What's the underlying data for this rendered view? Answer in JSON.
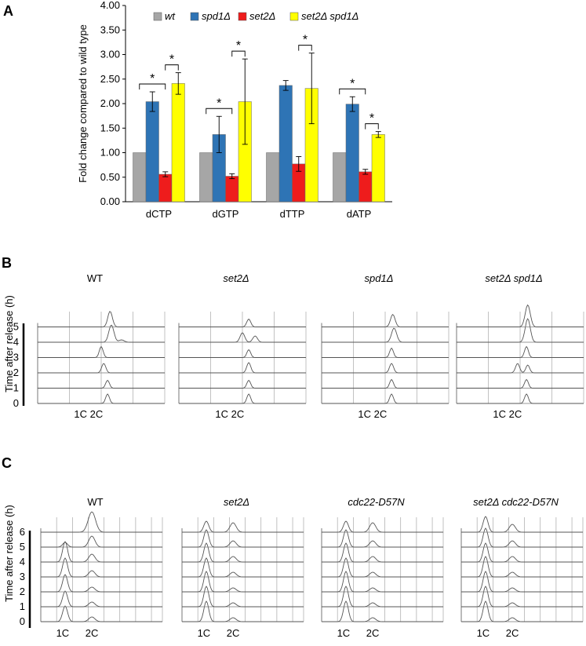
{
  "panelA": {
    "label": "A",
    "chart_data": {
      "type": "bar",
      "title": "",
      "xlabel": "",
      "ylabel": "Fold change compared to wild type",
      "ylim": [
        0,
        4
      ],
      "yticks": [
        "0.00",
        "0.50",
        "1.00",
        "1.50",
        "2.00",
        "2.50",
        "3.00",
        "3.50",
        "4.00"
      ],
      "categories": [
        "dCTP",
        "dGTP",
        "dTTP",
        "dATP"
      ],
      "series": [
        {
          "name": "wt",
          "label": "wt",
          "color": "#a6a6a6",
          "values": [
            1.0,
            1.0,
            1.0,
            1.0
          ],
          "errors": [
            0,
            0,
            0,
            0
          ]
        },
        {
          "name": "spd1Δ",
          "label": "spd1Δ",
          "color": "#2e74b5",
          "values": [
            2.04,
            1.37,
            2.37,
            1.99
          ],
          "errors": [
            0.2,
            0.37,
            0.1,
            0.15
          ]
        },
        {
          "name": "set2Δ",
          "label": "set2Δ",
          "color": "#ee1c1c",
          "values": [
            0.56,
            0.52,
            0.77,
            0.61
          ],
          "errors": [
            0.05,
            0.05,
            0.15,
            0.05
          ]
        },
        {
          "name": "set2Δ spd1Δ",
          "label": "set2Δ spd1Δ",
          "color": "#ffff00",
          "values": [
            2.41,
            2.04,
            2.31,
            1.37
          ],
          "errors": [
            0.22,
            0.87,
            0.72,
            0.06
          ]
        }
      ],
      "significance": [
        {
          "category": 0,
          "from": 0,
          "to": 2,
          "label": "*"
        },
        {
          "category": 0,
          "from": 2,
          "to": 3,
          "label": "*"
        },
        {
          "category": 1,
          "from": 0,
          "to": 2,
          "label": "*"
        },
        {
          "category": 1,
          "from": 2,
          "to": 3,
          "label": "*"
        },
        {
          "category": 2,
          "from": 2,
          "to": 3,
          "label": "*"
        },
        {
          "category": 3,
          "from": 0,
          "to": 2,
          "label": "*"
        },
        {
          "category": 3,
          "from": 2,
          "to": 3,
          "label": "*"
        }
      ],
      "legend": "top"
    }
  },
  "panelB": {
    "label": "B",
    "ylabel": "Time after release (h)",
    "time_ticks": [
      "0",
      "1",
      "2",
      "3",
      "4",
      "5"
    ],
    "titles": [
      "WT",
      "set2Δ",
      "spd1Δ",
      "set2Δ spd1Δ"
    ],
    "xlabels": [
      "1C 2C",
      "1C 2C",
      "1C 2C",
      "1C 2C"
    ]
  },
  "panelC": {
    "label": "C",
    "ylabel": "Time after release (h)",
    "time_ticks": [
      "0",
      "1",
      "2",
      "3",
      "4",
      "5",
      "6"
    ],
    "titles": [
      "WT",
      "set2Δ",
      "cdc22-D57N",
      "set2Δ cdc22-D57N"
    ],
    "xlabel_1c": "1C",
    "xlabel_2c": "2C"
  }
}
